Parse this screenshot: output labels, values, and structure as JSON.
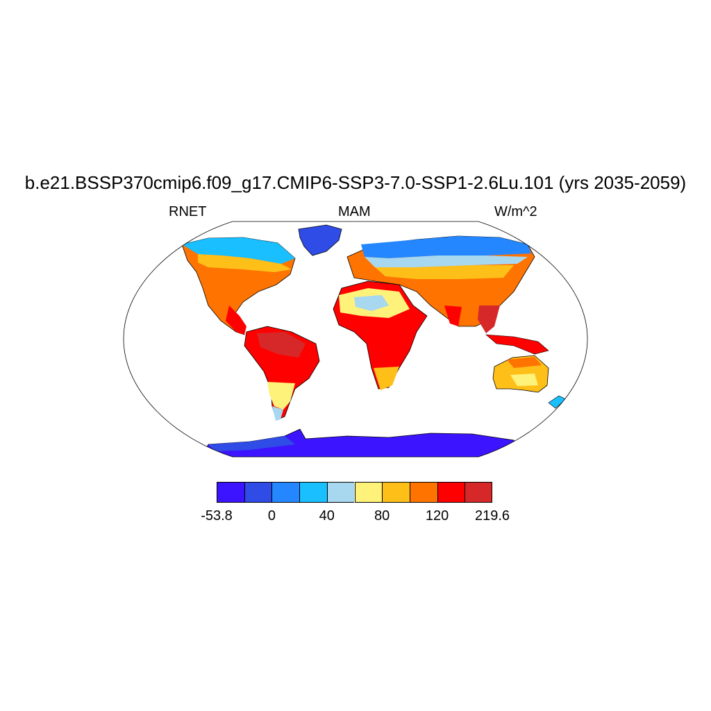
{
  "title": "b.e21.BSSP370cmip6.f09_g17.CMIP6-SSP3-7.0-SSP1-2.6Lu.101 (yrs 2035-2059)",
  "left_string": "RNET",
  "center_string": "MAM",
  "right_string": "W/m^2",
  "colorbar": {
    "colors": [
      "#3c14ff",
      "#2f4ce6",
      "#2487ff",
      "#19bfff",
      "#a8d7f0",
      "#fff27a",
      "#ffbf19",
      "#ff7300",
      "#ff0000",
      "#d62828"
    ],
    "labels": [
      {
        "text": "-53.8",
        "boundary": 0
      },
      {
        "text": "0",
        "boundary": 2
      },
      {
        "text": "40",
        "boundary": 4
      },
      {
        "text": "80",
        "boundary": 6
      },
      {
        "text": "120",
        "boundary": 8
      },
      {
        "text": "219.6",
        "boundary": 10
      }
    ]
  }
}
